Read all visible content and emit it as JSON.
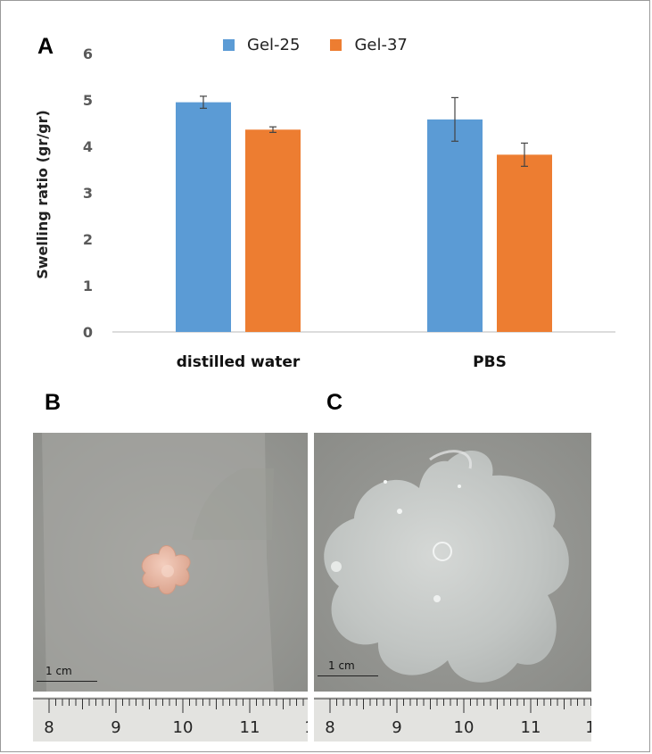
{
  "panels": {
    "a": "A",
    "b": "B",
    "c": "C"
  },
  "chart_data": {
    "type": "bar",
    "categories": [
      "distilled water",
      "PBS"
    ],
    "series": [
      {
        "name": "Gel-25",
        "color": "#5b9bd5",
        "values": [
          4.95,
          4.58
        ],
        "errors": [
          0.13,
          0.47
        ]
      },
      {
        "name": "Gel-37",
        "color": "#ed7d31",
        "values": [
          4.36,
          3.82
        ],
        "errors": [
          0.06,
          0.25
        ]
      }
    ],
    "ylabel": "Swelling ratio (gr/gr)",
    "xlabel": "",
    "ylim": [
      0,
      6
    ],
    "yticks": [
      "0",
      "1",
      "2",
      "3",
      "4",
      "5",
      "6"
    ],
    "grid": false,
    "legend_position": "top-center",
    "error_bars": true
  },
  "photos": {
    "b": {
      "scale_label": "1 cm",
      "ruler_numbers": [
        "8",
        "9",
        "10",
        "11",
        "1"
      ]
    },
    "c": {
      "scale_label": "1 cm",
      "ruler_numbers": [
        "8",
        "9",
        "10",
        "11",
        "1"
      ]
    }
  }
}
